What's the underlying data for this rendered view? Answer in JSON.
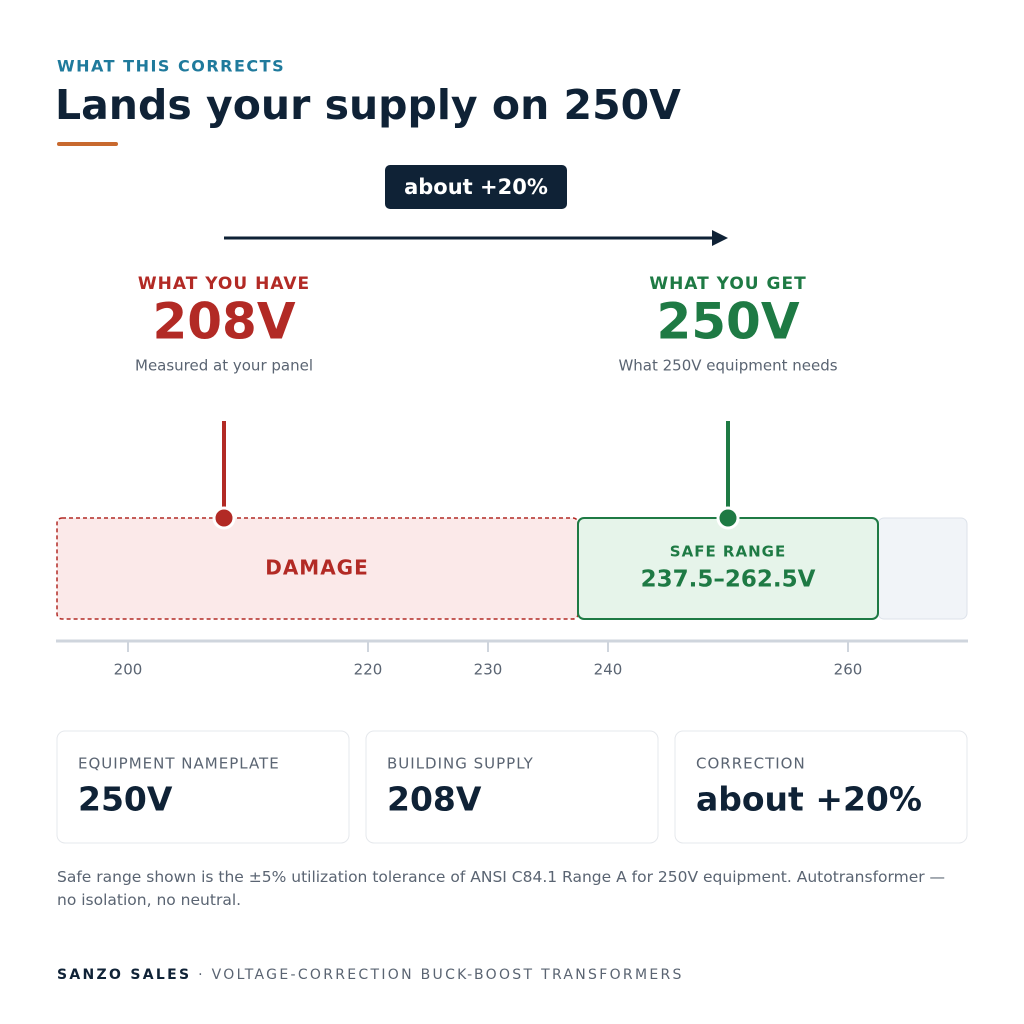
{
  "header": {
    "eyebrow": "WHAT THIS CORRECTS",
    "title": "Lands your supply on 250V"
  },
  "change": {
    "label": "about +20%"
  },
  "have": {
    "label": "WHAT YOU HAVE",
    "value_text": "208V",
    "note": "Measured at your panel",
    "value": 208
  },
  "get": {
    "label": "WHAT YOU GET",
    "value_text": "250V",
    "note": "What 250V equipment needs",
    "value": 250
  },
  "scale": {
    "xlim": [
      194,
      270
    ],
    "xticks": [
      200,
      220,
      230,
      240,
      260
    ],
    "safe_range": [
      237.5,
      262.5
    ],
    "safe_label": "SAFE RANGE",
    "safe_text": "237.5–262.5V",
    "damage_label": "DAMAGE"
  },
  "cards": [
    {
      "label": "EQUIPMENT NAMEPLATE",
      "value": "250V"
    },
    {
      "label": "BUILDING SUPPLY",
      "value": "208V"
    },
    {
      "label": "CORRECTION",
      "value": "about +20%"
    }
  ],
  "footnote": "Safe range shown is the ±5% utilization tolerance of ANSI C84.1 Range A for 250V equipment. Autotransformer — no isolation, no neutral.",
  "footer": {
    "brand": "SANZO SALES",
    "separator": "·",
    "tagline": "VOLTAGE-CORRECTION BUCK-BOOST TRANSFORMERS"
  }
}
